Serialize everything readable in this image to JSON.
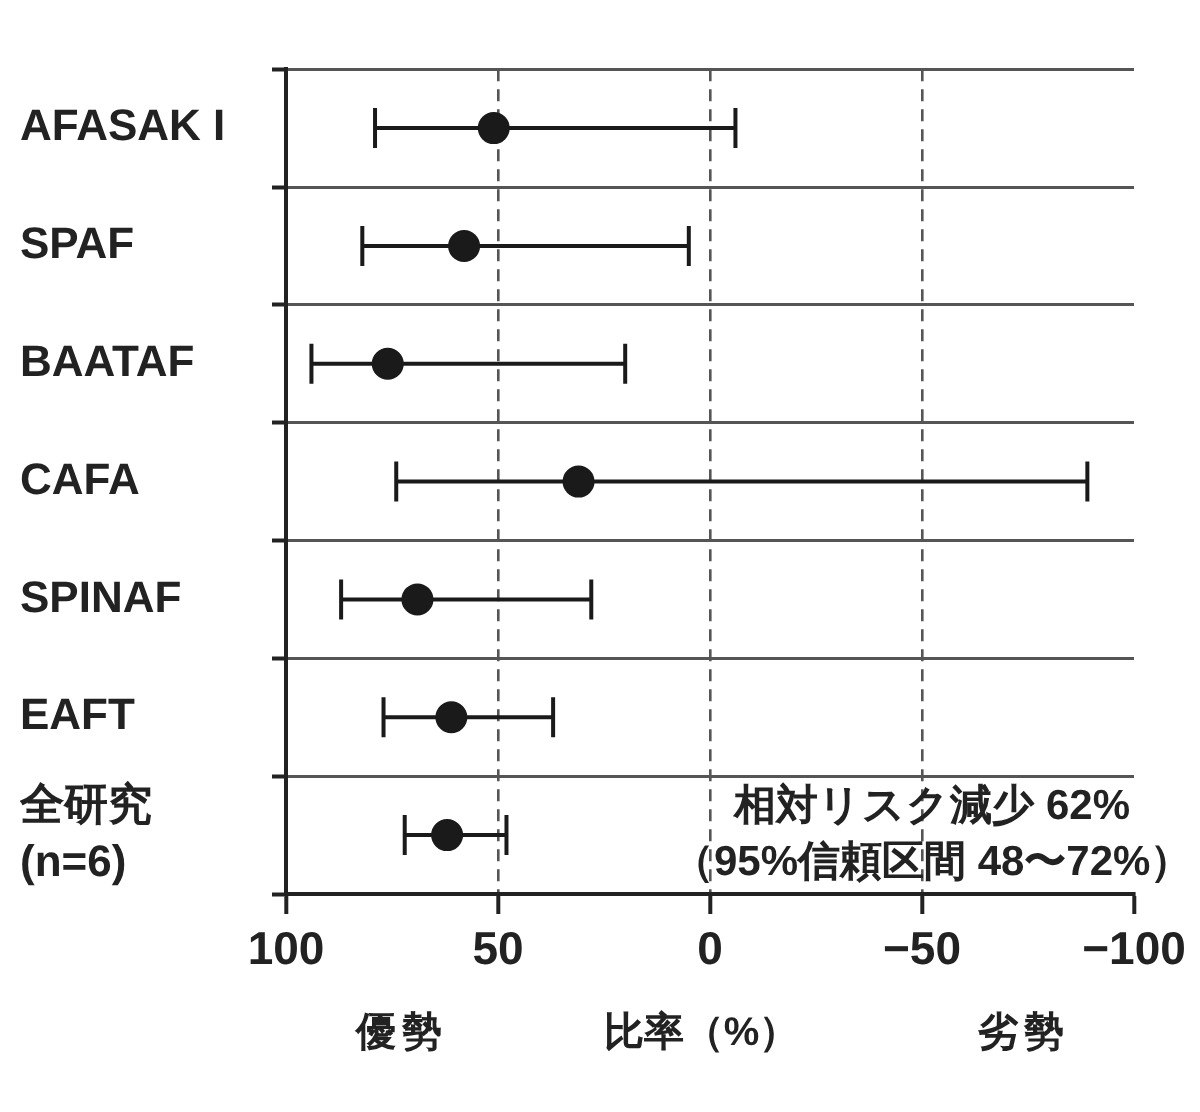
{
  "chart_data": {
    "type": "scatter",
    "orientation": "horizontal",
    "categories": [
      "AFASAK I",
      "SPAF",
      "BAATAF",
      "CAFA",
      "SPINAF",
      "EAFT",
      "全研究\n(n=6)"
    ],
    "values": [
      51,
      58,
      76,
      31,
      69,
      61,
      62
    ],
    "errors": [
      [
        -6,
        79
      ],
      [
        5,
        82
      ],
      [
        20,
        94
      ],
      [
        -89,
        74
      ],
      [
        28,
        87
      ],
      [
        37,
        77
      ],
      [
        48,
        72
      ]
    ],
    "color": "#1a1a1a",
    "marker": "circle",
    "xlim": [
      100,
      -100
    ],
    "xticks": [
      100,
      50,
      0,
      {
        "value": -50,
        "label": "−50"
      },
      {
        "value": -100,
        "label": "−100"
      }
    ],
    "xlabel": "比率（%）",
    "grid": true,
    "annotations": [
      "相対リスク減少 62%\n（95%信頼区間 48〜72%）",
      "優勢",
      "劣勢"
    ]
  }
}
